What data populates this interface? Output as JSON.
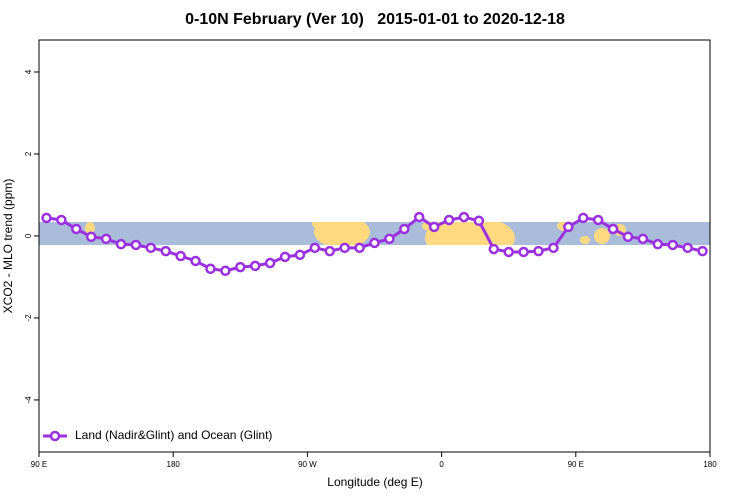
{
  "chart_data": {
    "type": "line",
    "title": "0-10N February (Ver 10)   2015-01-01 to 2020-12-18",
    "x_label": "Longitude (deg E)",
    "y_label": "XCO2 - MLO trend (ppm)",
    "x": [
      95,
      105,
      115,
      125,
      135,
      145,
      155,
      165,
      175,
      185,
      195,
      205,
      215,
      225,
      235,
      245,
      255,
      265,
      275,
      285,
      295,
      305,
      315,
      325,
      335,
      345,
      355,
      365,
      375,
      385,
      395,
      405,
      415,
      425,
      435,
      445,
      455,
      465,
      475,
      485,
      495,
      505,
      515,
      525,
      535
    ],
    "series": [
      {
        "name": "Land (Nadir&Glint) and Ocean (Glint)",
        "color": "#9b30e0",
        "values": [
          0.44,
          0.39,
          0.17,
          -0.02,
          -0.07,
          -0.2,
          -0.22,
          -0.29,
          -0.37,
          -0.49,
          -0.61,
          -0.8,
          -0.85,
          -0.76,
          -0.73,
          -0.66,
          -0.51,
          -0.46,
          -0.29,
          -0.37,
          -0.29,
          -0.29,
          -0.17,
          -0.07,
          0.17,
          0.46,
          0.22,
          0.39,
          0.46,
          0.37,
          -0.32,
          -0.39,
          -0.39,
          -0.37,
          -0.29,
          0.22,
          0.44,
          0.39,
          0.17,
          -0.02,
          -0.07,
          -0.2,
          -0.22,
          -0.29,
          -0.37
        ]
      }
    ],
    "xlim": [
      90,
      540
    ],
    "xticks": [
      {
        "value": 90,
        "label": "90 E"
      },
      180,
      {
        "value": 270,
        "label": "90 W"
      },
      {
        "value": 360,
        "label": "0"
      },
      {
        "value": 450,
        "label": "90 E"
      },
      {
        "value": 540,
        "label": "180"
      }
    ],
    "ylim": [
      -5.27,
      4.78
    ],
    "yticks": [
      -4,
      -2,
      0,
      2,
      4
    ],
    "legend": "bottom-left"
  }
}
